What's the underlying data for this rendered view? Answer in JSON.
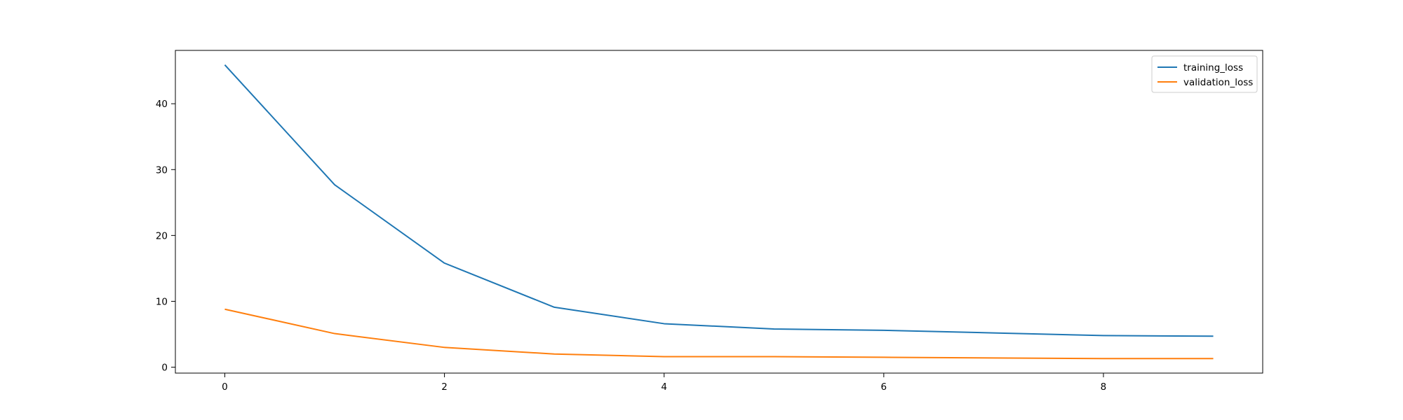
{
  "chart_data": {
    "type": "line",
    "title": "",
    "xlabel": "",
    "ylabel": "",
    "x": [
      0,
      1,
      2,
      3,
      4,
      5,
      6,
      7,
      8,
      9
    ],
    "xlim": [
      -0.45,
      9.45
    ],
    "ylim": [
      -0.9,
      48.1
    ],
    "xticks": [
      0,
      2,
      4,
      6,
      8
    ],
    "yticks": [
      0,
      10,
      20,
      30,
      40
    ],
    "grid": false,
    "legend_position": "top-right",
    "series": [
      {
        "name": "training_loss",
        "color": "#1f77b4",
        "values": [
          45.9,
          27.7,
          15.8,
          9.1,
          6.6,
          5.8,
          5.6,
          5.2,
          4.8,
          4.7
        ]
      },
      {
        "name": "validation_loss",
        "color": "#ff7f0e",
        "values": [
          8.8,
          5.1,
          3.0,
          2.0,
          1.6,
          1.6,
          1.5,
          1.4,
          1.3,
          1.3
        ]
      }
    ]
  }
}
